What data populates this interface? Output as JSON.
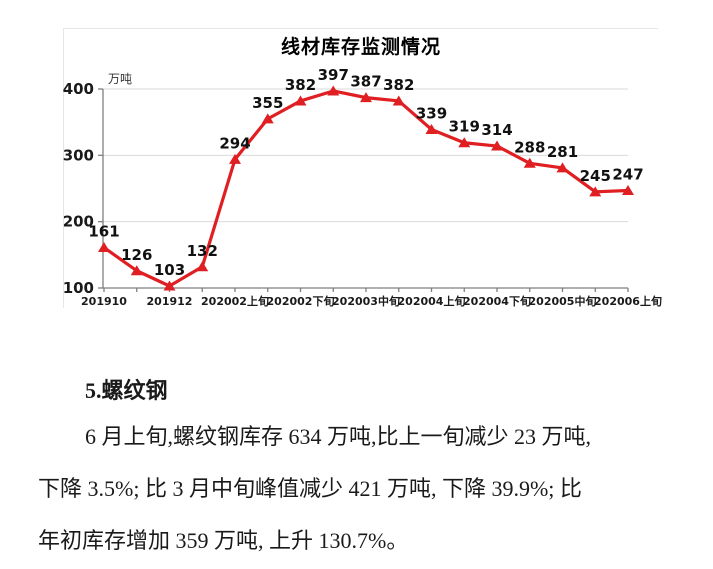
{
  "page": {
    "background": "#ffffff"
  },
  "chart_data": {
    "type": "line",
    "title": "线材库存监测情况",
    "ylabel": "万吨",
    "ylim": [
      100,
      400
    ],
    "yticks": [
      100,
      200,
      300,
      400
    ],
    "x_labels_shown": [
      "201910",
      "201912",
      "202002上旬",
      "202002下旬",
      "202003中旬",
      "202004上旬",
      "202004下旬",
      "202005中旬",
      "202006上旬"
    ],
    "x_label_interval": 2,
    "values": [
      161,
      126,
      103,
      132,
      294,
      355,
      382,
      397,
      387,
      382,
      339,
      319,
      314,
      288,
      281,
      245,
      247
    ],
    "series_color": "#e01f23",
    "marker": "triangle-up",
    "grid": true,
    "legend_position": "none"
  },
  "text": {
    "heading": "5.螺纹钢",
    "lines": [
      "6 月上旬,螺纹钢库存 634 万吨,比上一旬减少 23 万吨,",
      "下降 3.5%; 比 3 月中旬峰值减少 421 万吨, 下降 39.9%; 比",
      "年初库存增加 359 万吨, 上升 130.7%。"
    ]
  }
}
